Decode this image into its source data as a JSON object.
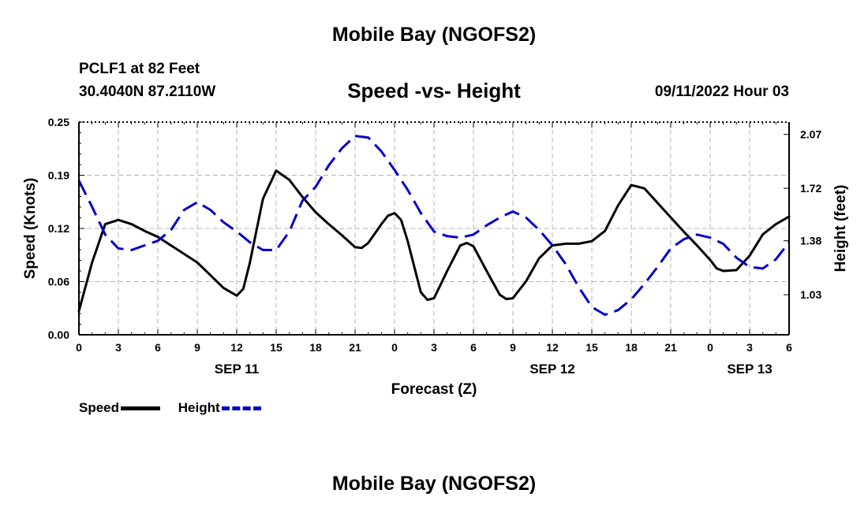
{
  "titles": {
    "main": "Mobile Bay (NGOFS2)",
    "station": "PCLF1 at 82 Feet",
    "coords": "30.4040N  87.2110W",
    "subtitle": "Speed -vs- Height",
    "datetime": "09/11/2022 Hour 03",
    "bottom": "Mobile Bay (NGOFS2)"
  },
  "legend": {
    "speed": "Speed",
    "height": "Height"
  },
  "colors": {
    "speed": "#000000",
    "height": "#0000cc",
    "grid": "#b4b4b4"
  },
  "chart_data": {
    "type": "line",
    "xlabel": "Forecast (Z)",
    "ylabel": "Speed (Knots)",
    "y2label": "Height (feet)",
    "xlim": [
      0,
      54
    ],
    "ylim": [
      0,
      0.25
    ],
    "y2lim": [
      0.77,
      2.15
    ],
    "x_tick_labels": [
      "0",
      "3",
      "6",
      "9",
      "12",
      "15",
      "18",
      "21",
      "0",
      "3",
      "6",
      "9",
      "12",
      "15",
      "18",
      "21",
      "0",
      "3",
      "6"
    ],
    "date_labels": [
      {
        "text": "SEP 11",
        "at": 12
      },
      {
        "text": "SEP 12",
        "at": 36
      },
      {
        "text": "SEP 13",
        "at": 51
      }
    ],
    "y_ticks": [
      "0.00",
      "0.06",
      "0.12",
      "0.19",
      "0.25"
    ],
    "y2_ticks": [
      "1.03",
      "1.38",
      "1.72",
      "2.07"
    ],
    "grid": true,
    "series": [
      {
        "name": "Speed",
        "axis": "left",
        "style": "solid",
        "x": [
          0,
          1,
          2,
          3,
          4,
          5,
          6,
          7,
          8,
          9,
          10,
          11,
          12,
          12.5,
          13,
          14,
          15,
          16,
          17,
          18,
          19,
          20,
          21,
          21.5,
          22,
          23,
          23.5,
          24,
          24.5,
          25,
          26,
          26.5,
          27,
          28,
          29,
          29.5,
          30,
          31,
          32,
          32.5,
          33,
          34,
          35,
          36,
          37,
          38,
          39,
          40,
          41,
          42,
          43,
          44,
          45,
          46,
          47,
          48,
          48.5,
          49,
          50,
          51,
          52,
          53,
          54
        ],
        "values": [
          0.028,
          0.085,
          0.13,
          0.135,
          0.13,
          0.122,
          0.115,
          0.105,
          0.095,
          0.085,
          0.07,
          0.055,
          0.046,
          0.054,
          0.085,
          0.16,
          0.193,
          0.182,
          0.162,
          0.144,
          0.13,
          0.117,
          0.103,
          0.102,
          0.108,
          0.13,
          0.14,
          0.143,
          0.135,
          0.11,
          0.05,
          0.041,
          0.043,
          0.075,
          0.105,
          0.108,
          0.104,
          0.075,
          0.047,
          0.042,
          0.043,
          0.063,
          0.09,
          0.105,
          0.107,
          0.107,
          0.11,
          0.122,
          0.152,
          0.176,
          0.172,
          0.155,
          0.138,
          0.121,
          0.105,
          0.088,
          0.078,
          0.075,
          0.076,
          0.093,
          0.118,
          0.13,
          0.139
        ]
      },
      {
        "name": "Height",
        "axis": "right",
        "style": "dashed",
        "x": [
          0,
          1,
          2,
          3,
          4,
          5,
          6,
          7,
          8,
          9,
          10,
          11,
          12,
          13,
          14,
          15,
          16,
          17,
          18,
          19,
          20,
          21,
          22,
          23,
          24,
          25,
          26,
          27,
          28,
          29,
          30,
          31,
          32,
          33,
          34,
          35,
          36,
          37,
          38,
          39,
          40,
          41,
          42,
          43,
          44,
          45,
          46,
          47,
          48,
          49,
          50,
          51,
          52,
          53,
          54
        ],
        "values": [
          1.77,
          1.6,
          1.42,
          1.33,
          1.32,
          1.35,
          1.38,
          1.45,
          1.58,
          1.63,
          1.58,
          1.5,
          1.44,
          1.37,
          1.32,
          1.32,
          1.44,
          1.64,
          1.73,
          1.87,
          1.98,
          2.06,
          2.05,
          1.96,
          1.84,
          1.71,
          1.56,
          1.44,
          1.41,
          1.4,
          1.42,
          1.48,
          1.53,
          1.57,
          1.53,
          1.45,
          1.35,
          1.23,
          1.08,
          0.95,
          0.9,
          0.93,
          1.0,
          1.1,
          1.21,
          1.33,
          1.39,
          1.42,
          1.4,
          1.36,
          1.27,
          1.21,
          1.2,
          1.26,
          1.37
        ]
      }
    ]
  }
}
